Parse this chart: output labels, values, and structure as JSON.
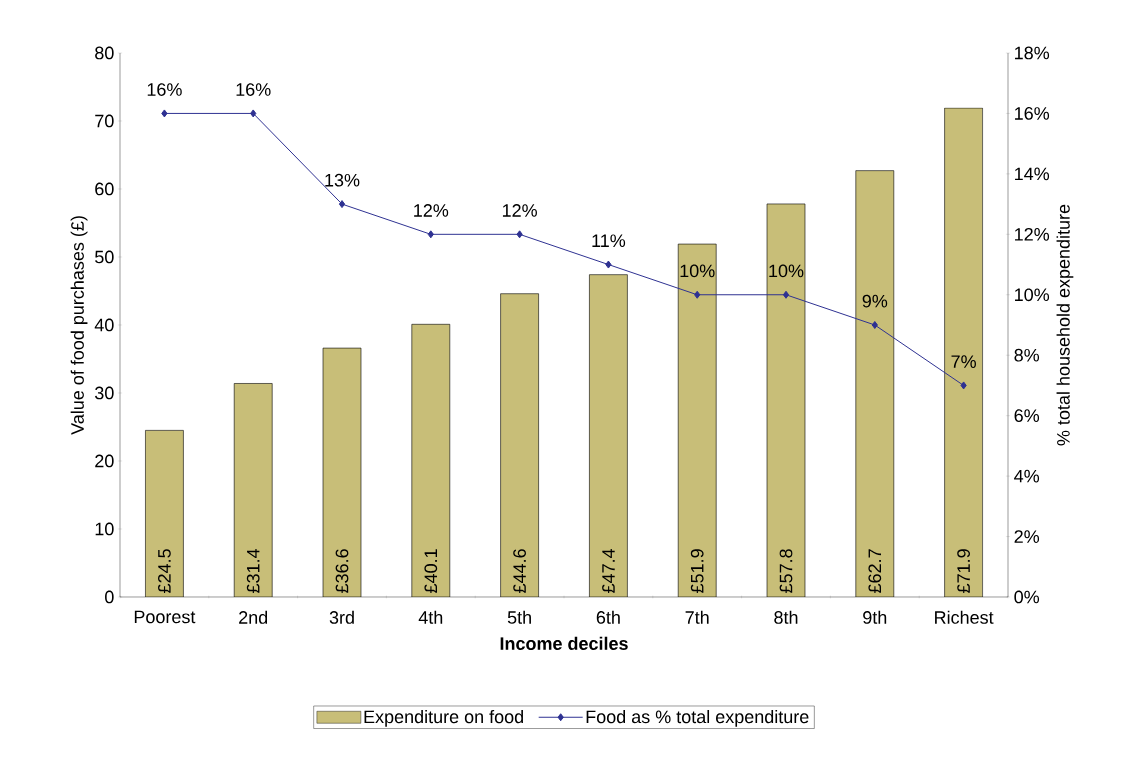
{
  "chart_data": {
    "type": "bar",
    "categories": [
      "Poorest",
      "2nd",
      "3rd",
      "4th",
      "5th",
      "6th",
      "7th",
      "8th",
      "9th",
      "Richest"
    ],
    "series": [
      {
        "name": "Expenditure on food",
        "color": "#c8be78",
        "values": [
          24.5,
          31.4,
          36.6,
          40.1,
          44.6,
          47.4,
          51.9,
          57.8,
          62.7,
          71.9
        ],
        "value_labels": [
          "£24.5",
          "£31.4",
          "£36.6",
          "£40.1",
          "£44.6",
          "£47.4",
          "£51.9",
          "£57.8",
          "£62.7",
          "£71.9"
        ]
      },
      {
        "type": "line",
        "name": "Food as % total expenditure",
        "color": "#2e3192",
        "axis": "y2",
        "marker": "diamond",
        "values": [
          16,
          16,
          13,
          12,
          12,
          11,
          10,
          10,
          9,
          7
        ],
        "value_labels": [
          "16%",
          "16%",
          "13%",
          "12%",
          "12%",
          "11%",
          "10%",
          "10%",
          "9%",
          "7%"
        ]
      }
    ],
    "xlabel": "Income deciles",
    "ylabel": "Value of food purchases (£)",
    "y2label": "% total household expenditure",
    "ylim": [
      0,
      80
    ],
    "yticks": [
      0,
      10,
      20,
      30,
      40,
      50,
      60,
      70,
      80
    ],
    "y2lim": [
      0,
      18
    ],
    "y2ticks": [
      {
        "value": 0,
        "label": "0%"
      },
      {
        "value": 2,
        "label": "2%"
      },
      {
        "value": 4,
        "label": "4%"
      },
      {
        "value": 6,
        "label": "6%"
      },
      {
        "value": 8,
        "label": "8%"
      },
      {
        "value": 10,
        "label": "10%"
      },
      {
        "value": 12,
        "label": "12%"
      },
      {
        "value": 14,
        "label": "14%"
      },
      {
        "value": 16,
        "label": "16%"
      },
      {
        "value": 18,
        "label": "18%"
      }
    ],
    "legend": "bottom"
  }
}
